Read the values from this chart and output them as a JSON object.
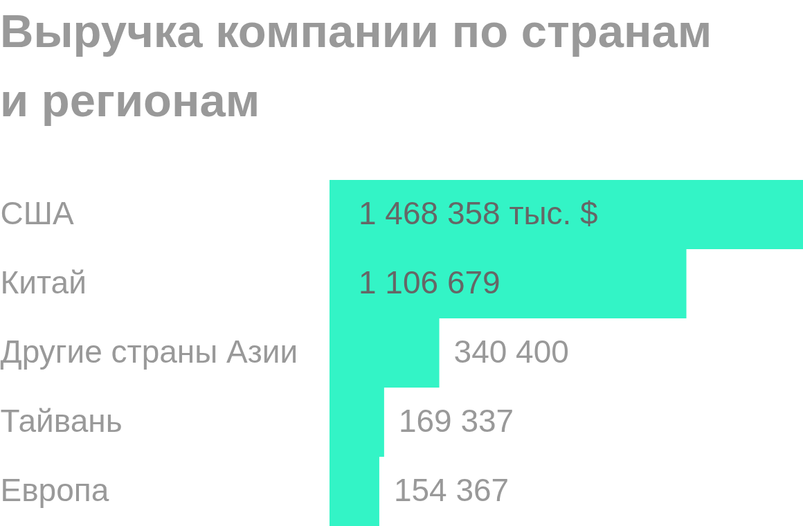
{
  "chart_data": {
    "type": "bar",
    "orientation": "horizontal",
    "title": "Выручка компании по странам и регионам",
    "categories": [
      "США",
      "Китай",
      "Другие страны Азии",
      "Тайвань",
      "Европа"
    ],
    "values": [
      1468358,
      1106679,
      340400,
      169337,
      154367
    ],
    "value_labels": [
      "1 468 358 тыс. $",
      "1 106 679",
      "340 400",
      "169 337",
      "154 367"
    ],
    "color": "#33f4c6",
    "xlim": [
      0,
      1468358
    ],
    "tick_labels": "y"
  }
}
